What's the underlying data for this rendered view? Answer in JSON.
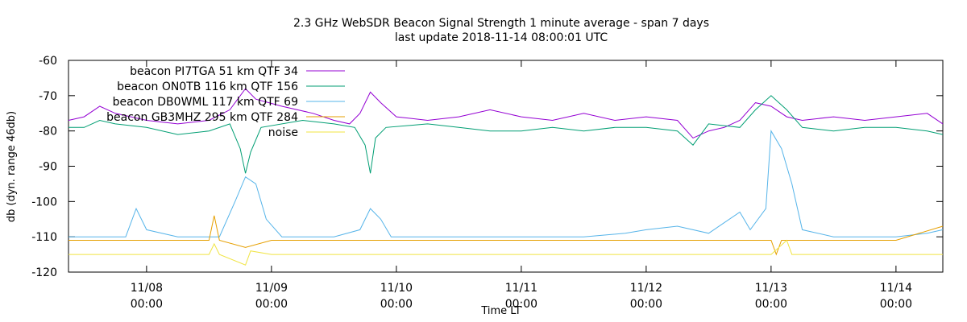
{
  "chart_data": {
    "type": "line",
    "title": "2.3 GHz WebSDR Beacon Signal Strength 1 minute average - span 7 days",
    "subtitle": "last update 2018-11-14 08:00:01 UTC",
    "xlabel": "Time LT",
    "ylabel": "db (dyn. range 46db)",
    "ylim": [
      -120,
      -60
    ],
    "yticks": [
      -60,
      -70,
      -80,
      -90,
      -100,
      -110,
      -120
    ],
    "xlim": [
      "2018-11-07 09:00",
      "2018-11-14 09:00"
    ],
    "xticks": [
      {
        "x": "2018-11-08 00:00",
        "date": "11/08",
        "time": "00:00"
      },
      {
        "x": "2018-11-09 00:00",
        "date": "11/09",
        "time": "00:00"
      },
      {
        "x": "2018-11-10 00:00",
        "date": "11/10",
        "time": "00:00"
      },
      {
        "x": "2018-11-11 00:00",
        "date": "11/11",
        "time": "00:00"
      },
      {
        "x": "2018-11-12 00:00",
        "date": "11/12",
        "time": "00:00"
      },
      {
        "x": "2018-11-13 00:00",
        "date": "11/13",
        "time": "00:00"
      },
      {
        "x": "2018-11-14 00:00",
        "date": "11/14",
        "time": "00:00"
      }
    ],
    "grid": false,
    "legend_position": "top-left",
    "series": [
      {
        "name": "beacon PI7TGA 51 km QTF 34",
        "color": "#9400d3",
        "points": [
          [
            "2018-11-07 09:00",
            -77
          ],
          [
            "2018-11-07 12:00",
            -76
          ],
          [
            "2018-11-07 15:00",
            -73
          ],
          [
            "2018-11-07 18:00",
            -75
          ],
          [
            "2018-11-08 00:00",
            -77
          ],
          [
            "2018-11-08 06:00",
            -78
          ],
          [
            "2018-11-08 12:00",
            -77
          ],
          [
            "2018-11-08 16:00",
            -74
          ],
          [
            "2018-11-08 19:00",
            -68
          ],
          [
            "2018-11-08 21:00",
            -71
          ],
          [
            "2018-11-09 02:00",
            -73
          ],
          [
            "2018-11-09 08:00",
            -75
          ],
          [
            "2018-11-09 12:00",
            -77
          ],
          [
            "2018-11-09 15:00",
            -78
          ],
          [
            "2018-11-09 17:00",
            -75
          ],
          [
            "2018-11-09 19:00",
            -69
          ],
          [
            "2018-11-09 21:00",
            -72
          ],
          [
            "2018-11-10 00:00",
            -76
          ],
          [
            "2018-11-10 06:00",
            -77
          ],
          [
            "2018-11-10 12:00",
            -76
          ],
          [
            "2018-11-10 18:00",
            -74
          ],
          [
            "2018-11-11 00:00",
            -76
          ],
          [
            "2018-11-11 06:00",
            -77
          ],
          [
            "2018-11-11 12:00",
            -75
          ],
          [
            "2018-11-11 18:00",
            -77
          ],
          [
            "2018-11-12 00:00",
            -76
          ],
          [
            "2018-11-12 06:00",
            -77
          ],
          [
            "2018-11-12 09:00",
            -82
          ],
          [
            "2018-11-12 12:00",
            -80
          ],
          [
            "2018-11-12 15:00",
            -79
          ],
          [
            "2018-11-12 18:00",
            -77
          ],
          [
            "2018-11-12 21:00",
            -72
          ],
          [
            "2018-11-13 00:00",
            -73
          ],
          [
            "2018-11-13 03:00",
            -76
          ],
          [
            "2018-11-13 06:00",
            -77
          ],
          [
            "2018-11-13 12:00",
            -76
          ],
          [
            "2018-11-13 18:00",
            -77
          ],
          [
            "2018-11-14 00:00",
            -76
          ],
          [
            "2018-11-14 06:00",
            -75
          ],
          [
            "2018-11-14 09:00",
            -78
          ]
        ]
      },
      {
        "name": "beacon ON0TB 116 km QTF 156",
        "color": "#009e73",
        "points": [
          [
            "2018-11-07 09:00",
            -79
          ],
          [
            "2018-11-07 12:00",
            -79
          ],
          [
            "2018-11-07 15:00",
            -77
          ],
          [
            "2018-11-07 18:00",
            -78
          ],
          [
            "2018-11-08 00:00",
            -79
          ],
          [
            "2018-11-08 06:00",
            -81
          ],
          [
            "2018-11-08 12:00",
            -80
          ],
          [
            "2018-11-08 16:00",
            -78
          ],
          [
            "2018-11-08 18:00",
            -85
          ],
          [
            "2018-11-08 19:00",
            -92
          ],
          [
            "2018-11-08 20:00",
            -86
          ],
          [
            "2018-11-08 22:00",
            -79
          ],
          [
            "2018-11-09 06:00",
            -77
          ],
          [
            "2018-11-09 12:00",
            -78
          ],
          [
            "2018-11-09 16:00",
            -79
          ],
          [
            "2018-11-09 18:00",
            -84
          ],
          [
            "2018-11-09 19:00",
            -92
          ],
          [
            "2018-11-09 20:00",
            -82
          ],
          [
            "2018-11-09 22:00",
            -79
          ],
          [
            "2018-11-10 06:00",
            -78
          ],
          [
            "2018-11-10 12:00",
            -79
          ],
          [
            "2018-11-10 18:00",
            -80
          ],
          [
            "2018-11-11 00:00",
            -80
          ],
          [
            "2018-11-11 06:00",
            -79
          ],
          [
            "2018-11-11 12:00",
            -80
          ],
          [
            "2018-11-11 18:00",
            -79
          ],
          [
            "2018-11-12 00:00",
            -79
          ],
          [
            "2018-11-12 06:00",
            -80
          ],
          [
            "2018-11-12 09:00",
            -84
          ],
          [
            "2018-11-12 12:00",
            -78
          ],
          [
            "2018-11-12 18:00",
            -79
          ],
          [
            "2018-11-12 21:00",
            -74
          ],
          [
            "2018-11-13 00:00",
            -70
          ],
          [
            "2018-11-13 03:00",
            -74
          ],
          [
            "2018-11-13 06:00",
            -79
          ],
          [
            "2018-11-13 12:00",
            -80
          ],
          [
            "2018-11-13 18:00",
            -79
          ],
          [
            "2018-11-14 00:00",
            -79
          ],
          [
            "2018-11-14 06:00",
            -80
          ],
          [
            "2018-11-14 09:00",
            -81
          ]
        ]
      },
      {
        "name": "beacon DB0WML 117 km QTF 69",
        "color": "#56b4e9",
        "points": [
          [
            "2018-11-07 09:00",
            -110
          ],
          [
            "2018-11-07 20:00",
            -110
          ],
          [
            "2018-11-07 22:00",
            -102
          ],
          [
            "2018-11-08 00:00",
            -108
          ],
          [
            "2018-11-08 06:00",
            -110
          ],
          [
            "2018-11-08 14:00",
            -110
          ],
          [
            "2018-11-08 17:00",
            -100
          ],
          [
            "2018-11-08 19:00",
            -93
          ],
          [
            "2018-11-08 21:00",
            -95
          ],
          [
            "2018-11-08 23:00",
            -105
          ],
          [
            "2018-11-09 02:00",
            -110
          ],
          [
            "2018-11-09 12:00",
            -110
          ],
          [
            "2018-11-09 17:00",
            -108
          ],
          [
            "2018-11-09 19:00",
            -102
          ],
          [
            "2018-11-09 21:00",
            -105
          ],
          [
            "2018-11-09 23:00",
            -110
          ],
          [
            "2018-11-10 12:00",
            -110
          ],
          [
            "2018-11-11 00:00",
            -110
          ],
          [
            "2018-11-11 12:00",
            -110
          ],
          [
            "2018-11-11 20:00",
            -109
          ],
          [
            "2018-11-12 00:00",
            -108
          ],
          [
            "2018-11-12 06:00",
            -107
          ],
          [
            "2018-11-12 12:00",
            -109
          ],
          [
            "2018-11-12 18:00",
            -103
          ],
          [
            "2018-11-12 20:00",
            -108
          ],
          [
            "2018-11-12 23:00",
            -102
          ],
          [
            "2018-11-13 00:00",
            -80
          ],
          [
            "2018-11-13 02:00",
            -85
          ],
          [
            "2018-11-13 04:00",
            -95
          ],
          [
            "2018-11-13 06:00",
            -108
          ],
          [
            "2018-11-13 12:00",
            -110
          ],
          [
            "2018-11-14 00:00",
            -110
          ],
          [
            "2018-11-14 06:00",
            -109
          ],
          [
            "2018-11-14 09:00",
            -108
          ]
        ]
      },
      {
        "name": "beacon GB3MHZ 295 km QTF 284",
        "color": "#e69f00",
        "points": [
          [
            "2018-11-07 09:00",
            -111
          ],
          [
            "2018-11-08 12:00",
            -111
          ],
          [
            "2018-11-08 13:00",
            -104
          ],
          [
            "2018-11-08 14:00",
            -111
          ],
          [
            "2018-11-08 19:00",
            -113
          ],
          [
            "2018-11-09 00:00",
            -111
          ],
          [
            "2018-11-10 00:00",
            -111
          ],
          [
            "2018-11-11 00:00",
            -111
          ],
          [
            "2018-11-12 00:00",
            -111
          ],
          [
            "2018-11-12 18:00",
            -111
          ],
          [
            "2018-11-13 00:00",
            -111
          ],
          [
            "2018-11-13 01:00",
            -115
          ],
          [
            "2018-11-13 02:00",
            -111
          ],
          [
            "2018-11-14 00:00",
            -111
          ],
          [
            "2018-11-14 09:00",
            -107
          ]
        ]
      },
      {
        "name": "noise",
        "color": "#f0e442",
        "points": [
          [
            "2018-11-07 09:00",
            -115
          ],
          [
            "2018-11-08 12:00",
            -115
          ],
          [
            "2018-11-08 13:00",
            -112
          ],
          [
            "2018-11-08 14:00",
            -115
          ],
          [
            "2018-11-08 19:00",
            -118
          ],
          [
            "2018-11-08 20:00",
            -114
          ],
          [
            "2018-11-09 00:00",
            -115
          ],
          [
            "2018-11-10 00:00",
            -115
          ],
          [
            "2018-11-11 00:00",
            -115
          ],
          [
            "2018-11-12 00:00",
            -115
          ],
          [
            "2018-11-13 00:00",
            -115
          ],
          [
            "2018-11-13 03:00",
            -111
          ],
          [
            "2018-11-13 04:00",
            -115
          ],
          [
            "2018-11-14 00:00",
            -115
          ],
          [
            "2018-11-14 09:00",
            -115
          ]
        ]
      }
    ]
  }
}
